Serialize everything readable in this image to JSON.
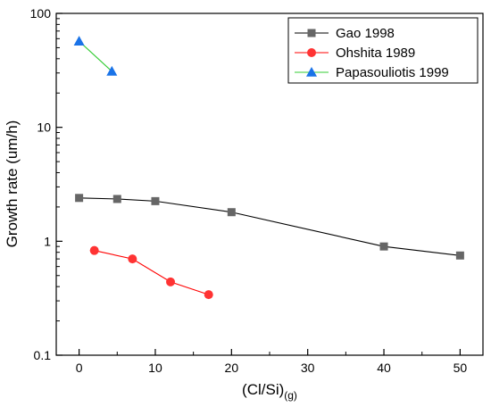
{
  "chart_data": {
    "type": "scatter",
    "title": "",
    "xlabel": "(Cl/Si)",
    "xlabel_subscript": "(g)",
    "ylabel": "Growth rate (um/h)",
    "xlim": [
      -3,
      53
    ],
    "ylim": [
      0.1,
      100
    ],
    "yscale": "log",
    "xticks": [
      0,
      10,
      20,
      30,
      40,
      50
    ],
    "xtick_labels": [
      "0",
      "10",
      "20",
      "30",
      "40",
      "50"
    ],
    "yticks": [
      0.1,
      1,
      10,
      100
    ],
    "ytick_labels": [
      "0.1",
      "1",
      "10",
      "100"
    ],
    "grid": false,
    "legend_position": "top-right",
    "series": [
      {
        "name": "Gao 1998",
        "color": "#666666",
        "line_color": "#000000",
        "marker": "square",
        "x": [
          0,
          5,
          10,
          20,
          40,
          50
        ],
        "y": [
          2.4,
          2.35,
          2.25,
          1.8,
          0.9,
          0.75
        ]
      },
      {
        "name": "Ohshita 1989",
        "color": "#ff3333",
        "line_color": "#ff0000",
        "marker": "circle",
        "x": [
          2,
          7,
          12,
          17
        ],
        "y": [
          0.83,
          0.7,
          0.44,
          0.34
        ]
      },
      {
        "name": "Papasouliotis 1999",
        "color": "#1a73e8",
        "line_color": "#33cc33",
        "marker": "triangle",
        "x": [
          0,
          4.3
        ],
        "y": [
          57,
          31
        ]
      }
    ]
  }
}
